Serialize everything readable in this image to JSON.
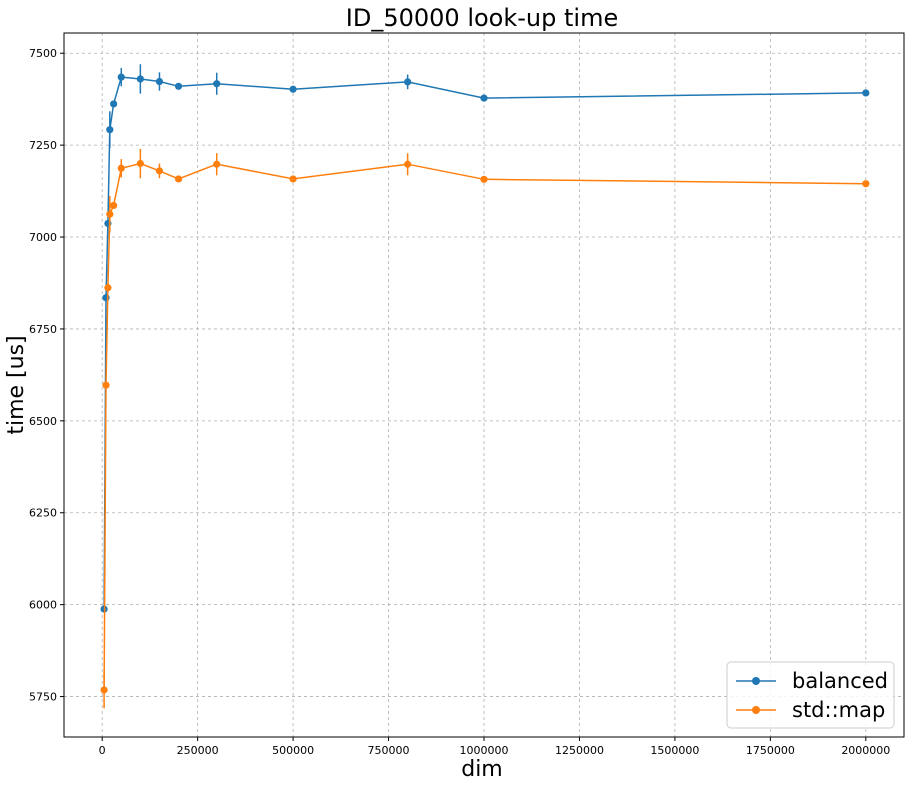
{
  "chart_data": {
    "type": "line",
    "title": "ID_50000 look-up time",
    "xlabel": "dim",
    "ylabel": "time [us]",
    "xlim": [
      -100000,
      2100000
    ],
    "ylim": [
      5640,
      7555
    ],
    "xticks": [
      0,
      250000,
      500000,
      750000,
      1000000,
      1250000,
      1500000,
      1750000,
      2000000
    ],
    "yticks": [
      5750,
      6000,
      6250,
      6500,
      6750,
      7000,
      7250,
      7500
    ],
    "grid": true,
    "legend_position": "bottom-right",
    "series": [
      {
        "name": "balanced",
        "color": "#1f77b4",
        "marker": "circle",
        "points": [
          {
            "x": 5000,
            "y": 5988,
            "err": 0
          },
          {
            "x": 10000,
            "y": 6835,
            "err": 0
          },
          {
            "x": 15000,
            "y": 7037,
            "err": 0
          },
          {
            "x": 20000,
            "y": 7292,
            "err": 50
          },
          {
            "x": 30000,
            "y": 7362,
            "err": 0
          },
          {
            "x": 50000,
            "y": 7435,
            "err": 25
          },
          {
            "x": 100000,
            "y": 7430,
            "err": 40
          },
          {
            "x": 150000,
            "y": 7423,
            "err": 25
          },
          {
            "x": 200000,
            "y": 7410,
            "err": 0
          },
          {
            "x": 300000,
            "y": 7417,
            "err": 30
          },
          {
            "x": 500000,
            "y": 7402,
            "err": 0
          },
          {
            "x": 800000,
            "y": 7422,
            "err": 20
          },
          {
            "x": 1000000,
            "y": 7378,
            "err": 0
          },
          {
            "x": 2000000,
            "y": 7392,
            "err": 0
          }
        ]
      },
      {
        "name": "std::map",
        "color": "#ff7f0e",
        "marker": "circle",
        "points": [
          {
            "x": 5000,
            "y": 5768,
            "err": 50
          },
          {
            "x": 10000,
            "y": 6597,
            "err": 0
          },
          {
            "x": 15000,
            "y": 6862,
            "err": 0
          },
          {
            "x": 20000,
            "y": 7062,
            "err": 50
          },
          {
            "x": 30000,
            "y": 7086,
            "err": 0
          },
          {
            "x": 50000,
            "y": 7187,
            "err": 25
          },
          {
            "x": 100000,
            "y": 7200,
            "err": 40
          },
          {
            "x": 150000,
            "y": 7180,
            "err": 20
          },
          {
            "x": 200000,
            "y": 7158,
            "err": 0
          },
          {
            "x": 300000,
            "y": 7198,
            "err": 30
          },
          {
            "x": 500000,
            "y": 7158,
            "err": 0
          },
          {
            "x": 800000,
            "y": 7198,
            "err": 30
          },
          {
            "x": 1000000,
            "y": 7157,
            "err": 0
          },
          {
            "x": 2000000,
            "y": 7145,
            "err": 0
          }
        ]
      }
    ]
  }
}
